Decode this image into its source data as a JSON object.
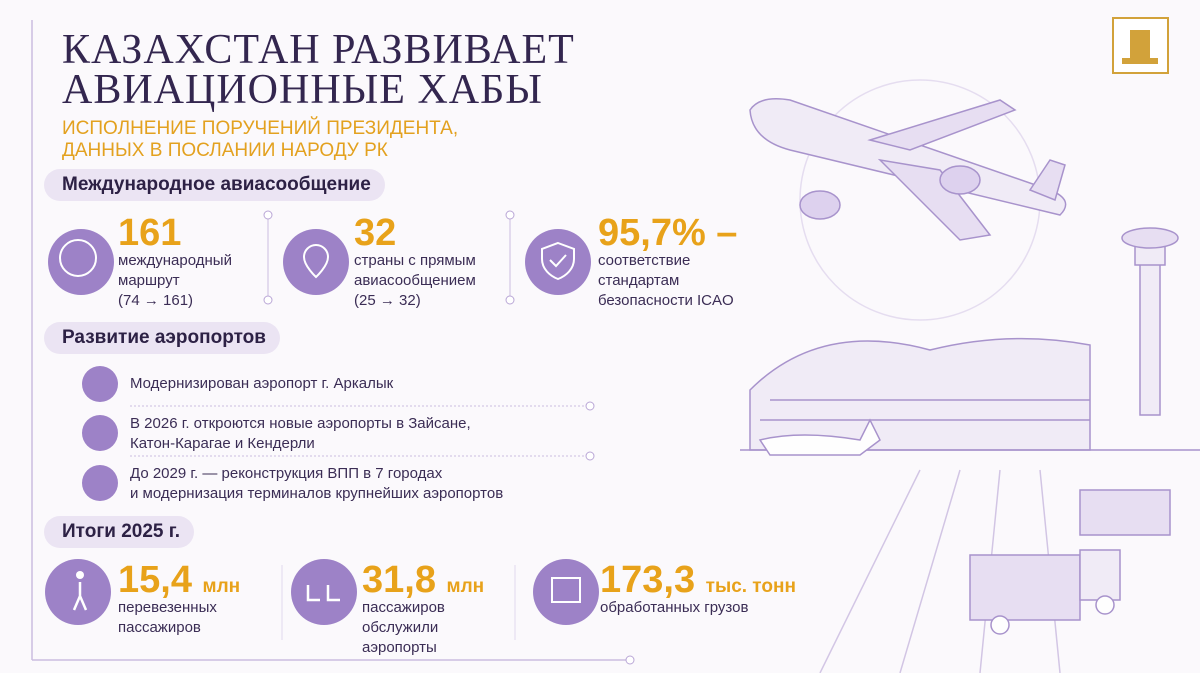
{
  "header": {
    "title": [
      "КАЗАХСТАН РАЗВИВАЕТ",
      "АВИАЦИОННЫЕ ХАБЫ"
    ],
    "subtitle": [
      "ИСПОЛНЕНИЕ ПОРУЧЕНИЙ ПРЕЗИДЕНТА,",
      "ДАННЫХ В ПОСЛАНИИ НАРОДУ РК"
    ]
  },
  "sections": [
    {
      "title": "Международное авиасообщение",
      "stats": [
        {
          "value": "161",
          "lines": [
            "международный",
            "маршрут",
            "(74 → 161)"
          ]
        },
        {
          "value": "32",
          "lines": [
            "страны с прямым",
            "авиасообщением",
            "(25 → 32)"
          ]
        },
        {
          "value": "95,7% –",
          "lines": [
            "соответствие",
            "стандартам",
            "безопасности ICAO"
          ]
        }
      ]
    },
    {
      "title": "Развитие аэропортов",
      "items": [
        [
          "Модернизирован аэропорт г. Аркалык"
        ],
        [
          "В 2026 г. откроются новые аэропорты в Зайсане,",
          "Катон-Карагае и Кендерли"
        ],
        [
          "До 2029 г. — реконструкция ВПП в 7 городах",
          "и модернизация терминалов крупнейших аэропортов"
        ]
      ]
    },
    {
      "title": "Итоги 2025 г.",
      "stats": [
        {
          "value": "15,4",
          "unit": "млн",
          "lines": [
            "перевезенных",
            "пассажиров"
          ]
        },
        {
          "value": "31,8",
          "unit": "млн",
          "lines": [
            "пассажиров",
            "обслужили",
            "аэропорты"
          ]
        },
        {
          "value": "173,3",
          "unit": "тыс. тонн",
          "lines": [
            "обработанных грузов"
          ]
        }
      ]
    }
  ]
}
